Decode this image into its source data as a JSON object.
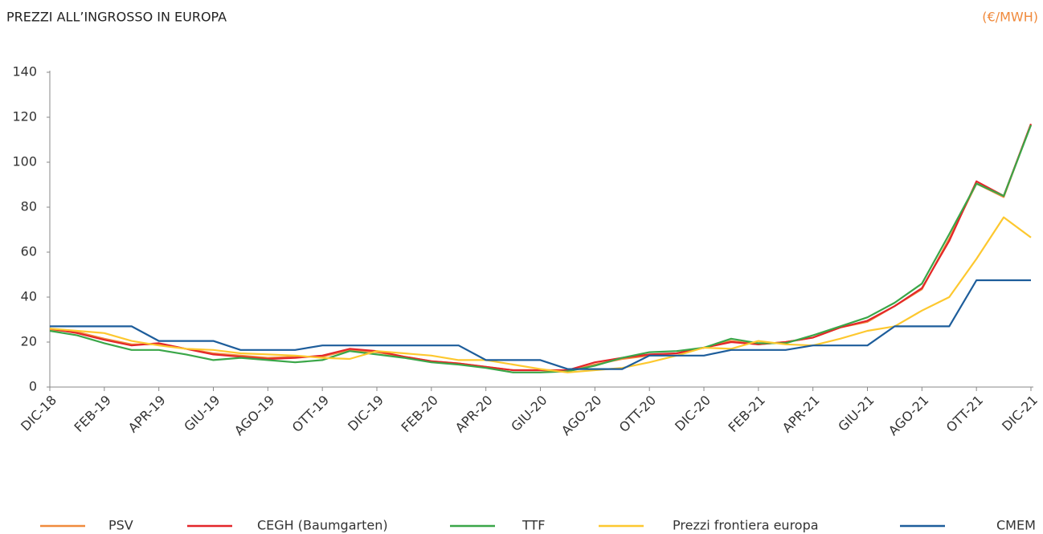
{
  "chart_data": {
    "type": "line",
    "title": "PREZZI ALL’INGROSSO IN EUROPA",
    "unit": "(€/MWH)",
    "categories": [
      "DIC-18",
      null,
      "FEB-19",
      null,
      "APR-19",
      null,
      "GIU-19",
      null,
      "AGO-19",
      null,
      "OTT-19",
      null,
      "DIC-19",
      null,
      "FEB-20",
      null,
      "APR-20",
      null,
      "GIU-20",
      null,
      "AGO-20",
      null,
      "OTT-20",
      null,
      "DIC-20",
      null,
      "FEB-21",
      null,
      "APR-21",
      null,
      "GIU-21",
      null,
      "AGO-21",
      null,
      "OTT-21",
      null,
      "DIC-21"
    ],
    "ylim": [
      0,
      140
    ],
    "yticks": [
      0,
      20,
      40,
      60,
      80,
      100,
      120,
      140
    ],
    "series": [
      {
        "name": "PSV",
        "color": "#f08a3c",
        "values": [
          25.5,
          24.5,
          21.5,
          19,
          19,
          17,
          15,
          14,
          13,
          13.5,
          13.5,
          16.5,
          15.5,
          13.5,
          11.5,
          10.5,
          9,
          7.5,
          7.5,
          7,
          10,
          12.5,
          14,
          15,
          17.5,
          20.5,
          19,
          20,
          22,
          26.5,
          29,
          36,
          43.5,
          66,
          90.5,
          84.5,
          117
        ]
      },
      {
        "name": "CEGH (Baumgarten)",
        "color": "#e3262a",
        "values": [
          26,
          24,
          21,
          18.5,
          19.5,
          17,
          14.5,
          13.5,
          12.5,
          13,
          14,
          17,
          16,
          13.5,
          11.5,
          10.5,
          9,
          7.5,
          7.5,
          7.5,
          11,
          13,
          14.5,
          15,
          17.5,
          20,
          19,
          20,
          22,
          26.5,
          29.5,
          36,
          44,
          65,
          91.5,
          85,
          117
        ]
      },
      {
        "name": "TTF",
        "color": "#3aa648",
        "values": [
          25,
          23,
          19.5,
          16.5,
          16.5,
          14.5,
          12,
          13,
          12,
          11,
          12,
          16,
          14.5,
          13,
          11,
          10,
          8.5,
          6.5,
          6.5,
          7,
          9.5,
          13,
          15.5,
          16,
          17.5,
          21.5,
          19.5,
          19.5,
          23,
          27,
          31,
          37.5,
          46,
          68,
          90.5,
          85,
          116.5
        ]
      },
      {
        "name": "Prezzi frontiera europa",
        "color": "#fdc82f",
        "values": [
          26,
          25,
          24,
          20.5,
          18.5,
          17,
          16.5,
          15,
          14.5,
          14,
          13,
          12.5,
          16,
          15,
          14,
          12,
          12,
          10,
          8,
          6.5,
          7.5,
          8.5,
          11,
          14,
          17.5,
          17,
          20.5,
          19,
          18.5,
          21.5,
          25,
          27,
          34,
          40,
          57,
          75.5,
          66.5
        ]
      },
      {
        "name": "CMEM",
        "color": "#1d5d9b",
        "values": [
          27,
          27,
          27,
          27,
          20.5,
          20.5,
          20.5,
          16.5,
          16.5,
          16.5,
          18.5,
          18.5,
          18.5,
          18.5,
          18.5,
          18.5,
          12,
          12,
          12,
          8,
          8,
          8,
          14,
          14,
          14,
          16.5,
          16.5,
          16.5,
          18.5,
          18.5,
          18.5,
          27,
          27,
          27,
          47.5,
          47.5,
          47.5
        ]
      }
    ]
  }
}
